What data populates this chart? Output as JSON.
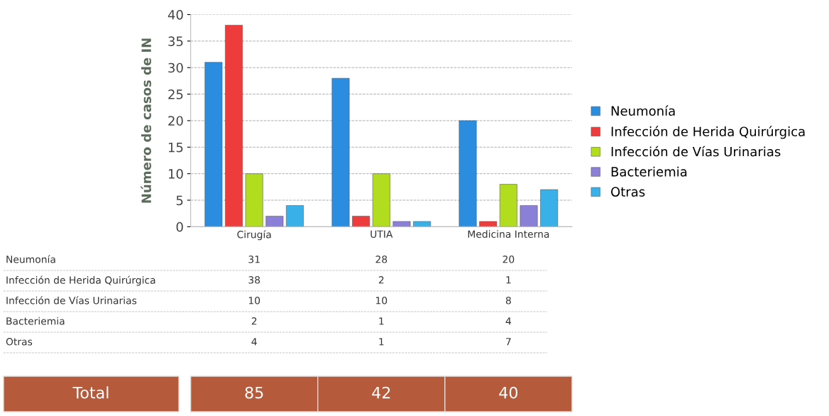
{
  "chart_data": {
    "type": "bar",
    "ylabel": "Número de casos de IN",
    "categories": [
      "Cirugía",
      "UTIA",
      "Medicina Interna"
    ],
    "series": [
      {
        "name": "Neumonía",
        "color": "#2b8de0",
        "values": [
          31,
          28,
          20
        ]
      },
      {
        "name": "Infección de Herida Quirúrgica",
        "color": "#ee3b3b",
        "values": [
          38,
          2,
          1
        ]
      },
      {
        "name": "Infección de Vías Urinarias",
        "color": "#b2dc1e",
        "values": [
          10,
          10,
          8
        ]
      },
      {
        "name": "Bacteriemia",
        "color": "#8b80d8",
        "values": [
          2,
          1,
          4
        ]
      },
      {
        "name": "Otras",
        "color": "#3ab0e8",
        "values": [
          4,
          1,
          7
        ]
      }
    ],
    "ylim": [
      0,
      40
    ],
    "yticks": [
      0,
      5,
      10,
      15,
      20,
      25,
      30,
      35,
      40
    ],
    "grid": "y",
    "legend": "right",
    "data_labels": true,
    "annotations": [
      "Total",
      "85",
      "42",
      "40"
    ]
  }
}
